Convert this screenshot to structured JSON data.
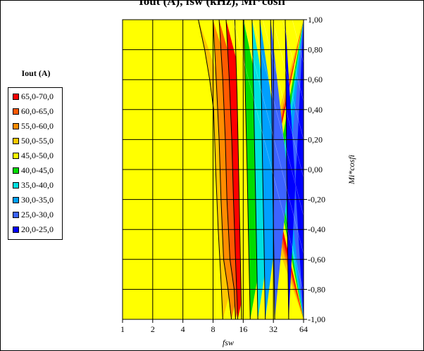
{
  "title": "Iout (A), fsw (kHz), Mi*cosfi",
  "chart_data": {
    "type": "contour",
    "legend_title": "Iout (A)",
    "legend": [
      {
        "label": "65,0-70,0",
        "color": "#ff0000"
      },
      {
        "label": "60,0-65,0",
        "color": "#ff5a00"
      },
      {
        "label": "55,0-60,0",
        "color": "#ff8c00"
      },
      {
        "label": "50,0-55,0",
        "color": "#ffc800"
      },
      {
        "label": "45,0-50,0",
        "color": "#ffff00"
      },
      {
        "label": "40,0-45,0",
        "color": "#00dc00"
      },
      {
        "label": "35,0-40,0",
        "color": "#00e0e0"
      },
      {
        "label": "30,0-35,0",
        "color": "#00a0ff"
      },
      {
        "label": "25,0-30,0",
        "color": "#3c64ff"
      },
      {
        "label": "20,0-25,0",
        "color": "#0000ff"
      }
    ],
    "xlabel": "fsw",
    "ylabel": "Mi*cosfi",
    "x_ticks": [
      "1",
      "2",
      "4",
      "8",
      "16",
      "32",
      "64"
    ],
    "y_ticks": [
      "-1,00",
      "-0,80",
      "-0,60",
      "-0,40",
      "-0,20",
      "0,00",
      "0,20",
      "0,40",
      "0,60",
      "0,80",
      "1,00"
    ],
    "x_scale": "log2",
    "xlim": [
      1,
      64
    ],
    "ylim": [
      1,
      -1
    ],
    "grid": true,
    "legend_position": "left",
    "boundaries": [
      {
        "level": 50,
        "points": [
          [
            5.7,
            1.0
          ],
          [
            6.6,
            0.8
          ],
          [
            7.4,
            0.6
          ],
          [
            8.1,
            0.4
          ],
          [
            8.5,
            0.0
          ],
          [
            9.0,
            -0.4
          ],
          [
            9.7,
            -0.8
          ],
          [
            10.0,
            -1.0
          ]
        ]
      },
      {
        "level": 55,
        "points": [
          [
            8.0,
            1.0
          ],
          [
            8.6,
            0.6
          ],
          [
            9.2,
            0.2
          ],
          [
            9.6,
            -0.2
          ],
          [
            10.2,
            -0.6
          ],
          [
            11.3,
            -0.8
          ],
          [
            12.2,
            -1.0
          ]
        ]
      },
      {
        "level": 60,
        "points": [
          [
            9.2,
            1.0
          ],
          [
            10.0,
            0.6
          ],
          [
            10.6,
            0.2
          ],
          [
            11.0,
            -0.2
          ],
          [
            11.8,
            -0.6
          ],
          [
            13.0,
            -0.8
          ],
          [
            13.4,
            -1.0
          ]
        ]
      },
      {
        "level": 65,
        "points": [
          [
            10.8,
            1.0
          ],
          [
            11.6,
            0.6
          ],
          [
            12.3,
            0.2
          ],
          [
            12.8,
            -0.2
          ],
          [
            13.4,
            -0.6
          ],
          [
            14.1,
            -1.0
          ]
        ]
      },
      {
        "level": 70,
        "points": [
          [
            13.2,
            1.0
          ],
          [
            13.9,
            0.5
          ],
          [
            14.4,
            0.0
          ],
          [
            14.9,
            -0.5
          ],
          [
            15.4,
            -1.0
          ]
        ]
      },
      {
        "level": 45,
        "points": [
          [
            16.2,
            1.0
          ],
          [
            16.8,
            0.5
          ],
          [
            17.5,
            0.0
          ],
          [
            18.1,
            -0.5
          ],
          [
            18.8,
            -1.0
          ]
        ]
      },
      {
        "level": 40,
        "points": [
          [
            19.6,
            1.0
          ],
          [
            20.3,
            0.5
          ],
          [
            21.0,
            0.0
          ],
          [
            21.7,
            -0.5
          ],
          [
            22.4,
            -1.0
          ]
        ]
      },
      {
        "level": 35,
        "points": [
          [
            23.5,
            1.0
          ],
          [
            24.3,
            0.5
          ],
          [
            25.0,
            0.0
          ],
          [
            25.8,
            -0.5
          ],
          [
            26.6,
            -1.0
          ]
        ]
      },
      {
        "level": 30,
        "points": [
          [
            30.0,
            1.0
          ],
          [
            30.8,
            0.5
          ],
          [
            31.4,
            0.0
          ],
          [
            32.2,
            -0.5
          ],
          [
            33.0,
            -1.0
          ]
        ]
      },
      {
        "level": 25,
        "points": [
          [
            42.0,
            1.0
          ],
          [
            42.8,
            0.5
          ],
          [
            43.5,
            0.0
          ],
          [
            44.4,
            -0.5
          ],
          [
            45.5,
            -1.0
          ]
        ]
      }
    ]
  }
}
